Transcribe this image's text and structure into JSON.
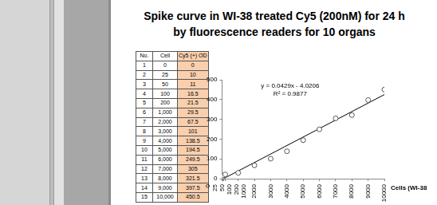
{
  "title": [
    "Spike curve in WI-38 treated Cy5 (200nM) for 24 h",
    "by fluorescence readers for 10 organs"
  ],
  "table": {
    "columns": [
      "No.",
      "Cell",
      "Cy5 (+) OD"
    ],
    "rows": [
      [
        "1",
        "0",
        "0"
      ],
      [
        "2",
        "25",
        "10"
      ],
      [
        "3",
        "50",
        "11"
      ],
      [
        "4",
        "100",
        "16.5"
      ],
      [
        "5",
        "200",
        "21.5"
      ],
      [
        "6",
        "1,000",
        "29.5"
      ],
      [
        "7",
        "2,000",
        "67.5"
      ],
      [
        "8",
        "3,000",
        "101"
      ],
      [
        "9",
        "4,000",
        "138.5"
      ],
      [
        "10",
        "5,000",
        "194.5"
      ],
      [
        "11",
        "6,000",
        "249.5"
      ],
      [
        "12",
        "7,000",
        "305"
      ],
      [
        "13",
        "8,000",
        "321.5"
      ],
      [
        "14",
        "9,000",
        "397.5"
      ],
      [
        "15",
        "10,000",
        "450.5"
      ]
    ]
  },
  "chart_data": {
    "type": "scatter",
    "x_label": "Cells (WI-38",
    "x": [
      0,
      25,
      50,
      100,
      200,
      1000,
      2000,
      3000,
      4000,
      5000,
      6000,
      7000,
      8000,
      9000,
      10000
    ],
    "values": [
      0,
      10,
      11,
      16.5,
      21.5,
      29.5,
      67.5,
      101,
      138.5,
      194.5,
      249.5,
      305,
      321.5,
      397.5,
      450.5
    ],
    "color": "#595959",
    "marker": "hollow_circle",
    "trendline": {
      "slope": 0.0429,
      "intercept": -4.0206,
      "color": "#000000",
      "equation": "y = 0.0429x - 4.0206",
      "r2_label": "R² = 0.9877"
    },
    "xlim": [
      0,
      10000
    ],
    "xticks": [
      0,
      25,
      50,
      100,
      200,
      1000,
      2000,
      3000,
      4000,
      5000,
      6000,
      7000,
      8000,
      9000,
      10000
    ],
    "ylim": [
      0,
      500
    ],
    "yticks": [
      0,
      100,
      200,
      300,
      400,
      500
    ],
    "grid": false,
    "legend": "none"
  }
}
